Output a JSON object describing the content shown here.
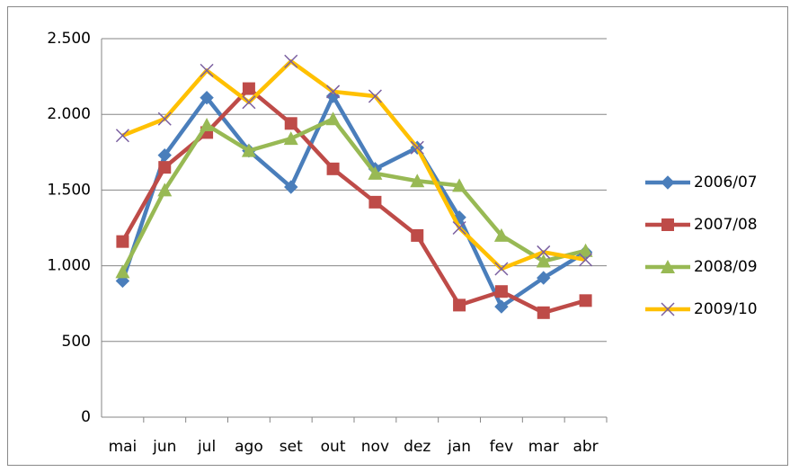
{
  "chart_data": {
    "type": "line",
    "categories": [
      "mai",
      "jun",
      "jul",
      "ago",
      "set",
      "out",
      "nov",
      "dez",
      "jan",
      "fev",
      "mar",
      "abr"
    ],
    "series": [
      {
        "name": "2006/07",
        "color": "#4a7ebb",
        "marker": "diamond",
        "values": [
          900,
          1730,
          2110,
          1760,
          1520,
          2120,
          1640,
          1780,
          1320,
          730,
          920,
          1090
        ]
      },
      {
        "name": "2007/08",
        "color": "#be4b48",
        "marker": "square",
        "values": [
          1160,
          1650,
          1880,
          2170,
          1940,
          1640,
          1420,
          1200,
          740,
          830,
          690,
          770
        ]
      },
      {
        "name": "2008/09",
        "color": "#98b954",
        "marker": "triangle",
        "values": [
          960,
          1500,
          1930,
          1760,
          1840,
          1970,
          1610,
          1560,
          1530,
          1200,
          1030,
          1100
        ]
      },
      {
        "name": "2009/10",
        "color": "#ffc000",
        "marker": "x",
        "values": [
          1860,
          1970,
          2290,
          2080,
          2350,
          2150,
          2120,
          1780,
          1250,
          980,
          1090,
          1040
        ]
      }
    ],
    "ylim": [
      0,
      2500
    ],
    "yticks": [
      0,
      500,
      {
        "value": 1000,
        "label": "1.000"
      },
      {
        "value": 1500,
        "label": "1.500"
      },
      {
        "value": 2000,
        "label": "2.000"
      },
      {
        "value": 2500,
        "label": "2.500"
      }
    ],
    "grid": true,
    "legend": "right"
  }
}
